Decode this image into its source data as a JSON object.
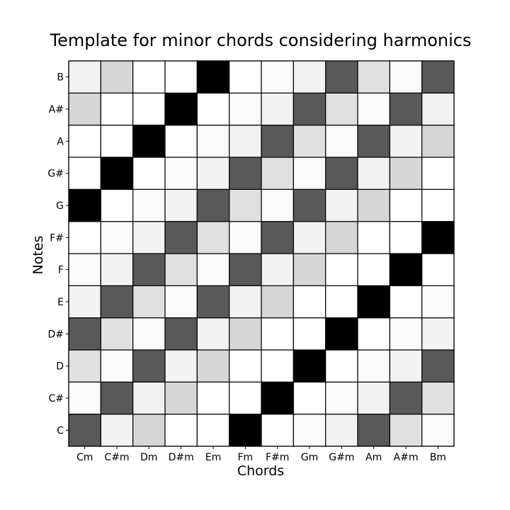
{
  "chart_data": {
    "type": "heatmap",
    "title": "Template for minor chords considering harmonics",
    "xlabel": "Chords",
    "ylabel": "Notes",
    "x_categories": [
      "Cm",
      "C#m",
      "Dm",
      "D#m",
      "Em",
      "Fm",
      "F#m",
      "Gm",
      "G#m",
      "Am",
      "A#m",
      "Bm"
    ],
    "y_categories": [
      "C",
      "C#",
      "D",
      "D#",
      "E",
      "F",
      "F#",
      "G",
      "G#",
      "A",
      "A#",
      "B"
    ],
    "colormap": "gray_r",
    "value_range": [
      0,
      1
    ],
    "values": [
      [
        0.65,
        0.05,
        0.16,
        0.0,
        0.0,
        1.0,
        0.0,
        0.02,
        0.05,
        0.65,
        0.12,
        0.02
      ],
      [
        0.02,
        0.65,
        0.05,
        0.16,
        0.0,
        0.0,
        1.0,
        0.0,
        0.02,
        0.05,
        0.65,
        0.12
      ],
      [
        0.12,
        0.02,
        0.65,
        0.05,
        0.16,
        0.0,
        0.0,
        1.0,
        0.0,
        0.02,
        0.05,
        0.65
      ],
      [
        0.65,
        0.12,
        0.02,
        0.65,
        0.05,
        0.16,
        0.0,
        0.0,
        1.0,
        0.0,
        0.02,
        0.05
      ],
      [
        0.05,
        0.65,
        0.12,
        0.02,
        0.65,
        0.05,
        0.16,
        0.0,
        0.0,
        1.0,
        0.0,
        0.02
      ],
      [
        0.02,
        0.05,
        0.65,
        0.12,
        0.02,
        0.65,
        0.05,
        0.16,
        0.0,
        0.0,
        1.0,
        0.0
      ],
      [
        0.0,
        0.02,
        0.05,
        0.65,
        0.12,
        0.02,
        0.65,
        0.05,
        0.16,
        0.0,
        0.0,
        1.0
      ],
      [
        1.0,
        0.0,
        0.02,
        0.05,
        0.65,
        0.12,
        0.02,
        0.65,
        0.05,
        0.16,
        0.0,
        0.0
      ],
      [
        0.0,
        1.0,
        0.0,
        0.02,
        0.05,
        0.65,
        0.12,
        0.02,
        0.65,
        0.05,
        0.16,
        0.0
      ],
      [
        0.0,
        0.0,
        1.0,
        0.0,
        0.02,
        0.05,
        0.65,
        0.12,
        0.02,
        0.65,
        0.05,
        0.16
      ],
      [
        0.16,
        0.0,
        0.0,
        1.0,
        0.0,
        0.02,
        0.05,
        0.65,
        0.12,
        0.02,
        0.65,
        0.05
      ],
      [
        0.05,
        0.16,
        0.0,
        0.0,
        1.0,
        0.0,
        0.02,
        0.05,
        0.65,
        0.12,
        0.02,
        0.65
      ]
    ]
  }
}
